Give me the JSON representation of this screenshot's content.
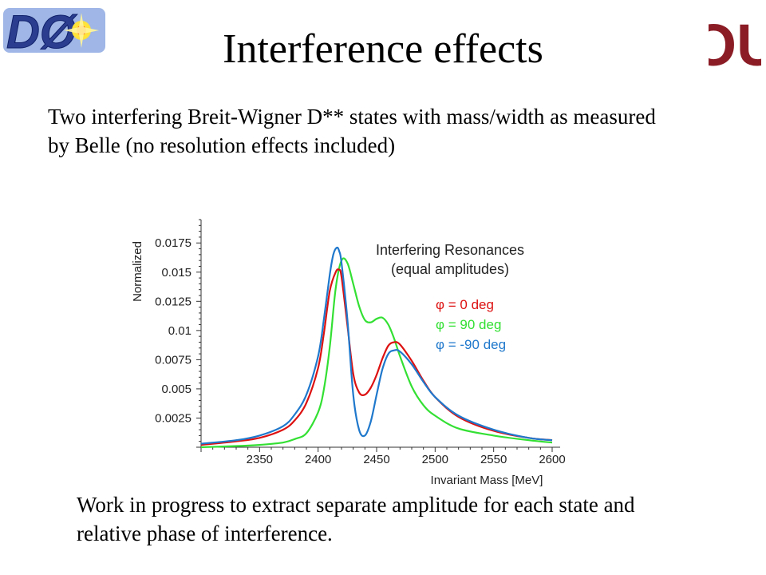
{
  "slide": {
    "title": "Interference effects",
    "intro": "Two interfering Breit-Wigner D** states with mass/width as measured by Belle (no resolution effects included)",
    "outro": "Work in progress to extract separate amplitude for each state and relative phase of interference.",
    "logo_left": "DØ",
    "logo_right": "OU"
  },
  "colors": {
    "red": "#dd1111",
    "green": "#33e033",
    "blue": "#1f78cc",
    "crimson": "#8b1c25",
    "navy": "#2a3d8f"
  },
  "chart_data": {
    "type": "line",
    "title": "Interfering Resonances",
    "subtitle": "(equal amplitudes)",
    "xlabel": "Invariant Mass [MeV]",
    "ylabel": "Normalized",
    "xlim": [
      2300,
      2600
    ],
    "ylim": [
      0,
      0.0195
    ],
    "x_ticks": [
      "2350",
      "2400",
      "2450",
      "2500",
      "2550",
      "2600"
    ],
    "y_ticks": [
      "0.0025",
      "0.005",
      "0.0075",
      "0.01",
      "0.0125",
      "0.015",
      "0.0175"
    ],
    "legend_position": "top-right",
    "series": [
      {
        "name": "φ = 0 deg",
        "color": "#dd1111",
        "x": [
          2300,
          2330,
          2350,
          2370,
          2380,
          2390,
          2400,
          2405,
          2410,
          2415,
          2418,
          2420,
          2425,
          2430,
          2435,
          2440,
          2445,
          2450,
          2455,
          2460,
          2465,
          2470,
          2480,
          2490,
          2500,
          2520,
          2550,
          2580,
          2600
        ],
        "y": [
          0.0002,
          0.0005,
          0.0008,
          0.0015,
          0.0023,
          0.0038,
          0.0068,
          0.0098,
          0.0134,
          0.015,
          0.0152,
          0.0146,
          0.0105,
          0.0063,
          0.0047,
          0.0045,
          0.0051,
          0.0062,
          0.0076,
          0.0087,
          0.009,
          0.0088,
          0.0074,
          0.0057,
          0.0043,
          0.0026,
          0.0014,
          0.0008,
          0.0006
        ]
      },
      {
        "name": "φ = 90 deg",
        "color": "#33e033",
        "x": [
          2300,
          2330,
          2350,
          2370,
          2380,
          2390,
          2400,
          2405,
          2410,
          2415,
          2420,
          2425,
          2430,
          2435,
          2440,
          2445,
          2450,
          2455,
          2460,
          2465,
          2470,
          2480,
          2490,
          2500,
          2520,
          2550,
          2580,
          2600
        ],
        "y": [
          0.0,
          0.0001,
          0.0002,
          0.0004,
          0.0007,
          0.0012,
          0.003,
          0.005,
          0.0086,
          0.0136,
          0.016,
          0.0158,
          0.014,
          0.0121,
          0.0109,
          0.0107,
          0.011,
          0.0111,
          0.0105,
          0.0093,
          0.0078,
          0.0052,
          0.0036,
          0.0027,
          0.0016,
          0.001,
          0.0006,
          0.0004
        ]
      },
      {
        "name": "φ = -90 deg",
        "color": "#1f78cc",
        "x": [
          2300,
          2330,
          2350,
          2370,
          2380,
          2390,
          2400,
          2405,
          2410,
          2413,
          2416,
          2418,
          2420,
          2425,
          2430,
          2435,
          2440,
          2445,
          2450,
          2455,
          2460,
          2465,
          2470,
          2480,
          2490,
          2500,
          2520,
          2550,
          2580,
          2600
        ],
        "y": [
          0.0003,
          0.0006,
          0.001,
          0.0018,
          0.0028,
          0.0045,
          0.0078,
          0.011,
          0.0148,
          0.0165,
          0.0171,
          0.0168,
          0.0158,
          0.011,
          0.0045,
          0.0015,
          0.001,
          0.0022,
          0.0045,
          0.0067,
          0.008,
          0.0083,
          0.0082,
          0.0071,
          0.0056,
          0.0043,
          0.0027,
          0.0015,
          0.0008,
          0.0006
        ]
      }
    ]
  }
}
